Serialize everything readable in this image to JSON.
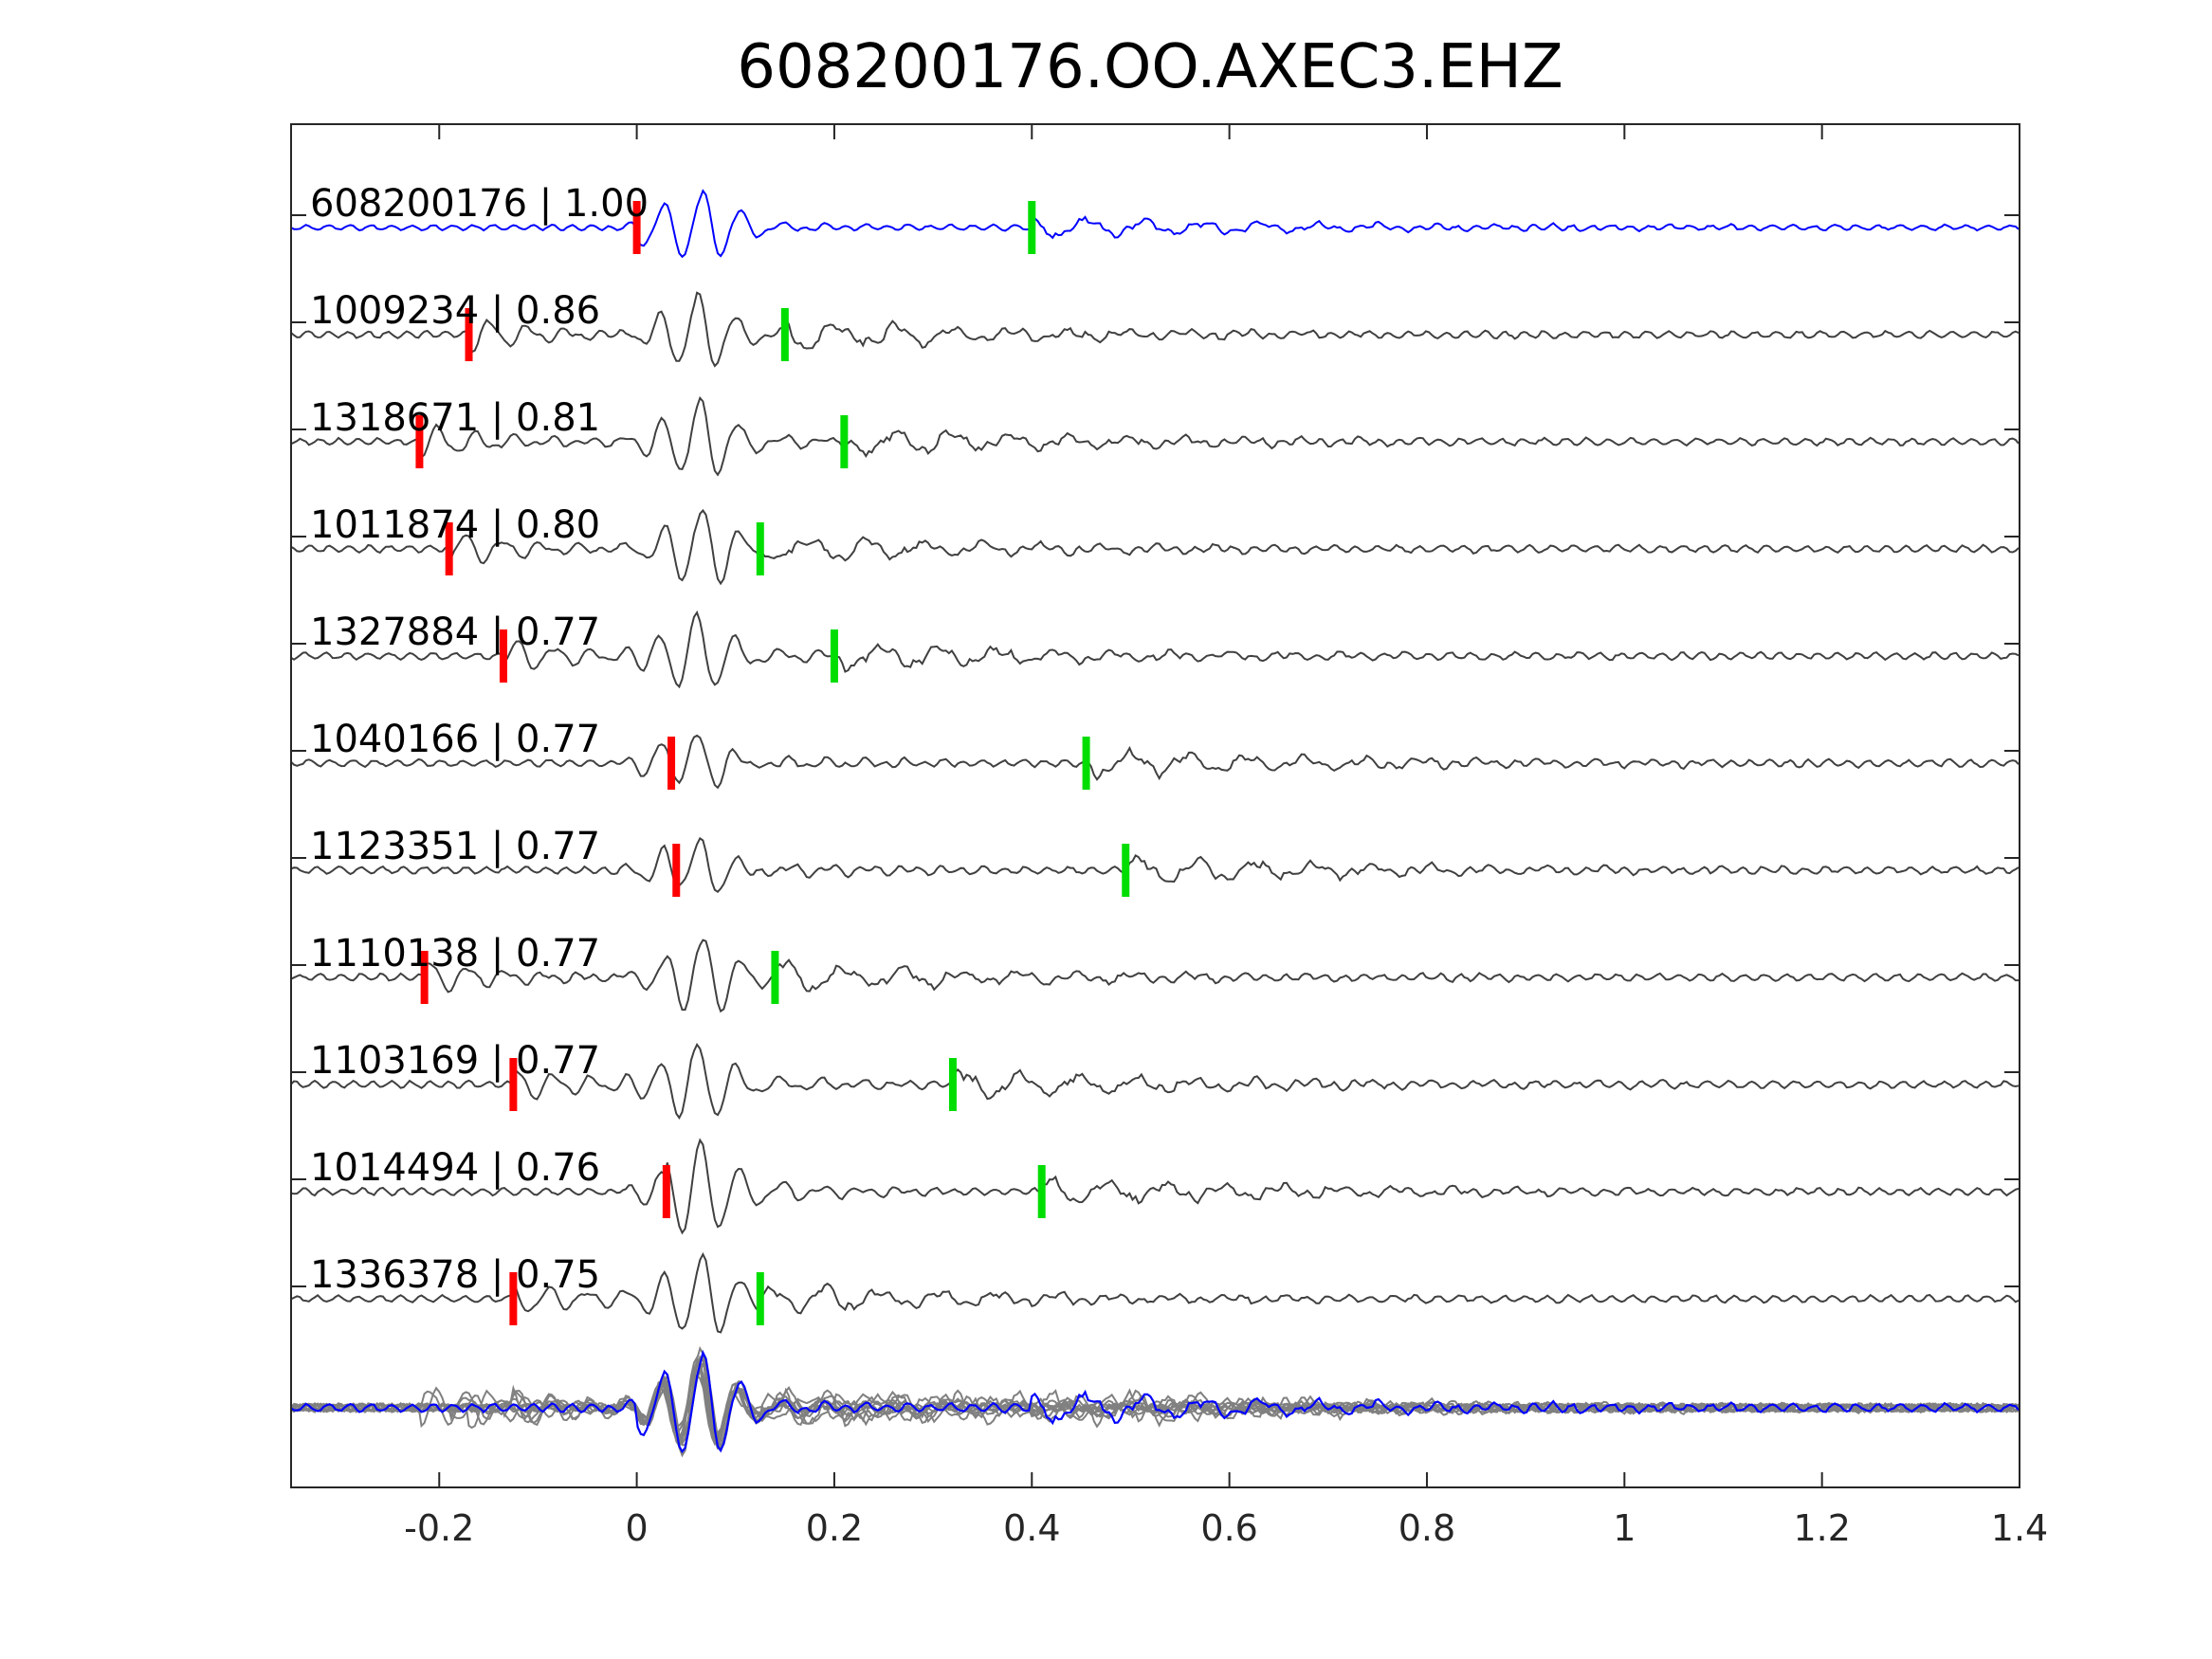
{
  "chart_data": {
    "type": "line",
    "title": "608200176.OO.AXEC3.EHZ",
    "xlabel": "",
    "ylabel": "",
    "xlim": [
      -0.35,
      1.4
    ],
    "x_ticks": [
      -0.2,
      0,
      0.2,
      0.4,
      0.6,
      0.8,
      1,
      1.2,
      1.4
    ],
    "x_tick_labels": [
      "-0.2",
      "0",
      "0.2",
      "0.4",
      "0.6",
      "0.8",
      "1",
      "1.2",
      "1.4"
    ],
    "grid": false,
    "legend": "none",
    "colors": {
      "template": "#0000ff",
      "neighbor": "#404040",
      "stack": "#808080",
      "p_pick": "#ff0000",
      "s_pick": "#00dd00"
    },
    "series": [
      {
        "label": "608200176 | 1.00",
        "p_pick": 0.0,
        "s_pick": 0.4
      },
      {
        "label": "1009234 | 0.86",
        "p_pick": -0.17,
        "s_pick": 0.15
      },
      {
        "label": "1318671 | 0.81",
        "p_pick": -0.22,
        "s_pick": 0.21
      },
      {
        "label": "1011874 | 0.80",
        "p_pick": -0.19,
        "s_pick": 0.125
      },
      {
        "label": "1327884 | 0.77",
        "p_pick": -0.135,
        "s_pick": 0.2
      },
      {
        "label": "1040166 | 0.77",
        "p_pick": 0.035,
        "s_pick": 0.455
      },
      {
        "label": "1123351 | 0.77",
        "p_pick": 0.04,
        "s_pick": 0.495
      },
      {
        "label": "1110138 | 0.77",
        "p_pick": -0.215,
        "s_pick": 0.14
      },
      {
        "label": "1103169 | 0.77",
        "p_pick": -0.125,
        "s_pick": 0.32
      },
      {
        "label": "1014494 | 0.76",
        "p_pick": 0.03,
        "s_pick": 0.41
      },
      {
        "label": "1336378 | 0.75",
        "p_pick": -0.125,
        "s_pick": 0.125
      }
    ]
  }
}
